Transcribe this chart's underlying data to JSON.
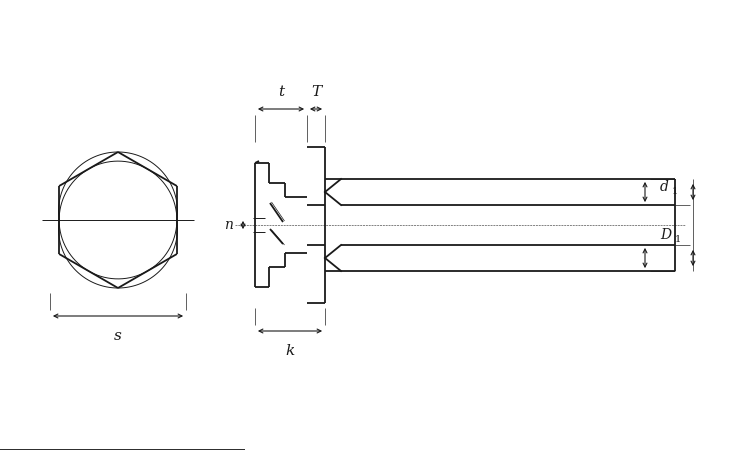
{
  "bg_color": "#ffffff",
  "line_color": "#1a1a1a",
  "lw": 1.3,
  "tlw": 0.7,
  "labels": {
    "s": "s",
    "k": "k",
    "t": "t",
    "T": "T",
    "n": "n",
    "d1": "d1",
    "D1": "D1"
  }
}
